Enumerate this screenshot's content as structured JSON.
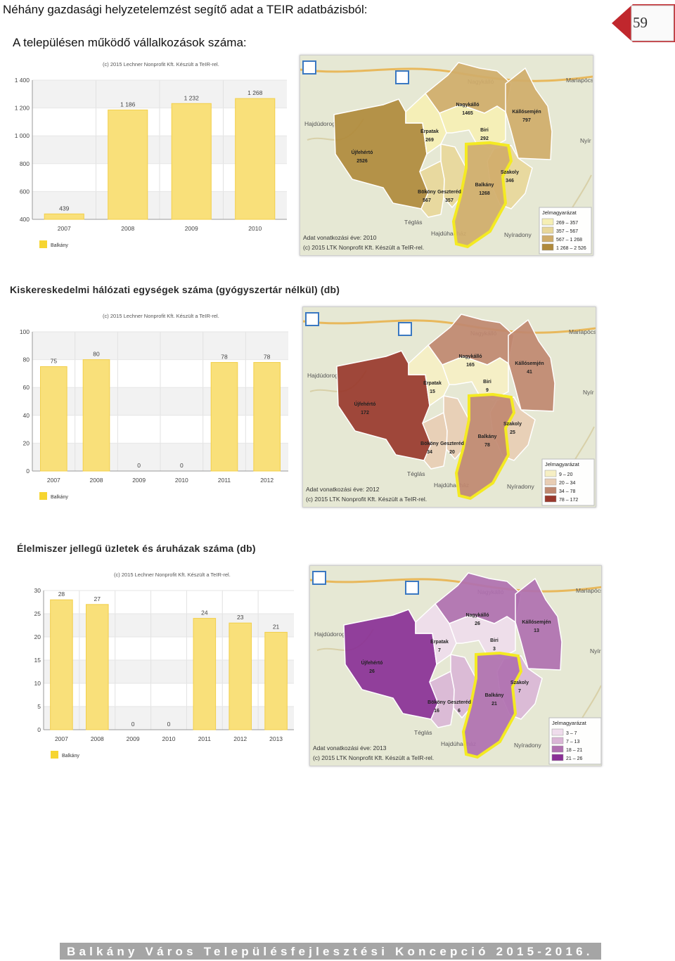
{
  "header": "Néhány gazdasági helyzetelemzést segítő adat a TEIR adatbázisból:",
  "subtitle": "A településen működő vállalkozások száma:",
  "page_number": "59",
  "footer": "Balkány Város Településfejlesztési Koncepció 2015-2016.",
  "colors": {
    "bar": "#f9e07a",
    "bar_edge": "#f2cf4a",
    "grid_band": "#f2f2f2",
    "tab": "#c0272d",
    "footer_bg": "#a5a5a5",
    "balkany_outline": "#f4ea22"
  },
  "sections": [
    {
      "title": ""
    },
    {
      "title": "Kiskereskedelmi hálózati egységek száma (gyógyszertár nélkül) (db)"
    },
    {
      "title": "Élelmiszer jellegű üzletek és áruházak száma (db)"
    }
  ],
  "chart_data": [
    {
      "type": "bar",
      "title": "(c) 2015 Lechner Nonprofit Kft. Készült a TeIR-rel.",
      "categories": [
        "2007",
        "2008",
        "2009",
        "2010"
      ],
      "values": [
        439,
        1186,
        1232,
        1268
      ],
      "value_labels": [
        "439",
        "1 186",
        "1 232",
        "1 268"
      ],
      "yticks": [
        "400",
        "600",
        "800",
        "1 000",
        "1 200",
        "1 400"
      ],
      "ylim": [
        400,
        1400
      ],
      "legend": "Balkány",
      "legend_placement": "bottom-left",
      "grid": true
    },
    {
      "type": "bar",
      "title": "(c) 2015 Lechner Nonprofit Kft. Készült a TeIR-rel.",
      "categories": [
        "2007",
        "2008",
        "2009",
        "2010",
        "2011",
        "2012"
      ],
      "values": [
        75,
        80,
        0,
        0,
        78,
        78
      ],
      "value_labels": [
        "75",
        "80",
        "0",
        "0",
        "78",
        "78"
      ],
      "yticks": [
        "0",
        "20",
        "40",
        "60",
        "80",
        "100"
      ],
      "ylim": [
        0,
        100
      ],
      "legend": "Balkány",
      "legend_placement": "bottom-left",
      "grid": true
    },
    {
      "type": "bar",
      "title": "(c) 2015 Lechner Nonprofit Kft. Készült a TeIR-rel.",
      "categories": [
        "2007",
        "2008",
        "2009",
        "2010",
        "2011",
        "2012",
        "2013"
      ],
      "values": [
        28,
        27,
        0,
        0,
        24,
        23,
        21
      ],
      "value_labels": [
        "28",
        "27",
        "0",
        "0",
        "24",
        "23",
        "21"
      ],
      "yticks": [
        "0",
        "5",
        "10",
        "15",
        "20",
        "25",
        "30"
      ],
      "ylim": [
        0,
        30
      ],
      "legend": "Balkány",
      "legend_placement": "bottom-left",
      "grid": true
    }
  ],
  "maps": [
    {
      "year_label": "Adat vonatkozási éve: 2010",
      "credit": "(c) 2015 LTK Nonprofit Kft. Készült a TeIR-rel.",
      "places": [
        "Mariapócs",
        "Hajdúdorog",
        "Nyír",
        "Téglás",
        "Hajdúhadház",
        "Nyíradony",
        "Nagykálló"
      ],
      "settlements": [
        {
          "name": "Újfehértó",
          "value": "2526"
        },
        {
          "name": "Nagykálló",
          "value": "1465"
        },
        {
          "name": "Kállósemjén",
          "value": "797"
        },
        {
          "name": "Érpatak",
          "value": "269"
        },
        {
          "name": "Biri",
          "value": "292"
        },
        {
          "name": "Szakoly",
          "value": "346"
        },
        {
          "name": "Bököny",
          "value": "567"
        },
        {
          "name": "Geszteréd",
          "value": "357"
        },
        {
          "name": "Balkány",
          "value": "1268"
        }
      ],
      "legend_title": "Jelmagyarázat",
      "legend": [
        {
          "label": "269 –  357",
          "color": "#f6efb4"
        },
        {
          "label": "357 –  567",
          "color": "#e8d79a"
        },
        {
          "label": "567 – 1 268",
          "color": "#d0ad6a"
        },
        {
          "label": "1 268 – 2 526",
          "color": "#b08a3c"
        }
      ]
    },
    {
      "year_label": "Adat vonatkozási éve: 2012",
      "credit": "(c) 2015 LTK Nonprofit Kft. Készült a TeIR-rel.",
      "places": [
        "Mariapócs",
        "Hajdúdorog",
        "Nyír",
        "Téglás",
        "Hajdúhadház",
        "Nyíradony",
        "Nagykálló"
      ],
      "settlements": [
        {
          "name": "Újfehértó",
          "value": "172"
        },
        {
          "name": "Nagykálló",
          "value": "165"
        },
        {
          "name": "Kállósemjén",
          "value": "41"
        },
        {
          "name": "Érpatak",
          "value": "15"
        },
        {
          "name": "Biri",
          "value": "9"
        },
        {
          "name": "Szakoly",
          "value": "25"
        },
        {
          "name": "Bököny",
          "value": "34"
        },
        {
          "name": "Geszteréd",
          "value": "20"
        },
        {
          "name": "Balkány",
          "value": "78"
        }
      ],
      "legend_title": "Jelmagyarázat",
      "legend": [
        {
          "label": "9 –  20",
          "color": "#f6efc4"
        },
        {
          "label": "20 –  34",
          "color": "#e8cdb4"
        },
        {
          "label": "34 –  78",
          "color": "#c08870"
        },
        {
          "label": "78 – 172",
          "color": "#99382c"
        }
      ]
    },
    {
      "year_label": "Adat vonatkozási éve: 2013",
      "credit": "(c) 2015 LTK Nonprofit Kft. Készült a TeIR-rel.",
      "places": [
        "Mariapócs",
        "Hajdúdorog",
        "Nyír",
        "Téglás",
        "Hajdúhadház",
        "Nyíradony",
        "Nagykálló"
      ],
      "settlements": [
        {
          "name": "Újfehértó",
          "value": "26"
        },
        {
          "name": "Nagykálló",
          "value": "26"
        },
        {
          "name": "Kállósemjén",
          "value": "13"
        },
        {
          "name": "Érpatak",
          "value": "7"
        },
        {
          "name": "Biri",
          "value": "3"
        },
        {
          "name": "Szakoly",
          "value": "7"
        },
        {
          "name": "Bököny",
          "value": "16"
        },
        {
          "name": "Geszteréd",
          "value": "6"
        },
        {
          "name": "Balkány",
          "value": "21"
        }
      ],
      "legend_title": "Jelmagyarázat",
      "legend": [
        {
          "label": "3 –  7",
          "color": "#efdcec"
        },
        {
          "label": "7 –  13",
          "color": "#dab6d6"
        },
        {
          "label": "18 –  21",
          "color": "#b070b0"
        },
        {
          "label": "21 –  26",
          "color": "#8a3096"
        }
      ]
    }
  ]
}
